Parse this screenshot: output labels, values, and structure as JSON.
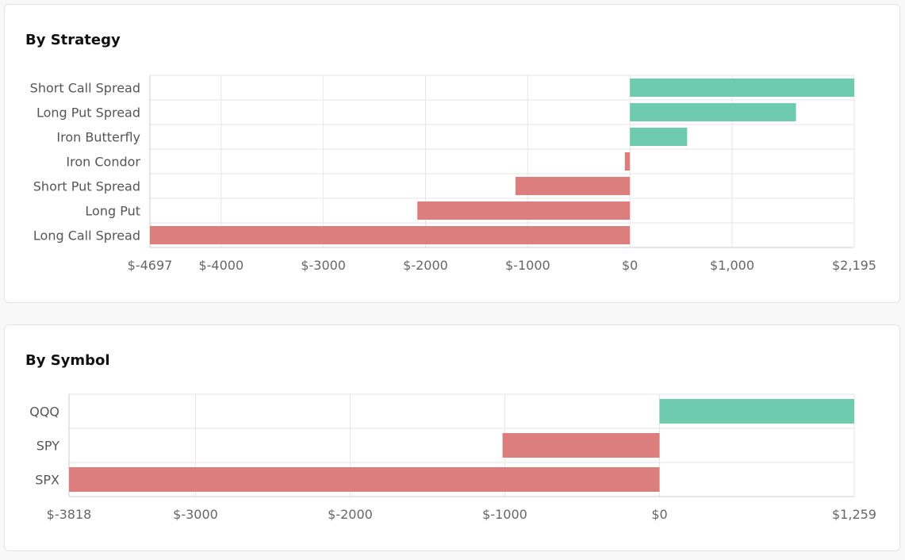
{
  "chart_data": [
    {
      "type": "bar",
      "orientation": "horizontal",
      "title": "By Strategy",
      "categories": [
        "Short Call Spread",
        "Long Put Spread",
        "Iron Butterfly",
        "Iron Condor",
        "Short Put Spread",
        "Long Put",
        "Long Call Spread"
      ],
      "values": [
        2195,
        1625,
        560,
        -50,
        -1120,
        -2080,
        -4697
      ],
      "xlim": [
        -4697,
        2195
      ],
      "x_ticks": [
        -4697,
        -4000,
        -3000,
        -2000,
        -1000,
        0,
        1000,
        2195
      ],
      "x_tick_labels": [
        "$-4697",
        "$-4000",
        "$-3000",
        "$-2000",
        "$-1000",
        "$0",
        "$1,000",
        "$2,195"
      ],
      "grid": true,
      "colors": {
        "positive": "#6fcbae",
        "negative": "#db7e7d"
      }
    },
    {
      "type": "bar",
      "orientation": "horizontal",
      "title": "By Symbol",
      "categories": [
        "QQQ",
        "SPY",
        "SPX"
      ],
      "values": [
        1259,
        -1015,
        -3818
      ],
      "xlim": [
        -3818,
        1259
      ],
      "x_ticks": [
        -3818,
        -3000,
        -2000,
        -1000,
        0,
        1259
      ],
      "x_tick_labels": [
        "$-3818",
        "$-3000",
        "$-2000",
        "$-1000",
        "$0",
        "$1,259"
      ],
      "grid": true,
      "colors": {
        "positive": "#6fcbae",
        "negative": "#db7e7d"
      }
    }
  ]
}
